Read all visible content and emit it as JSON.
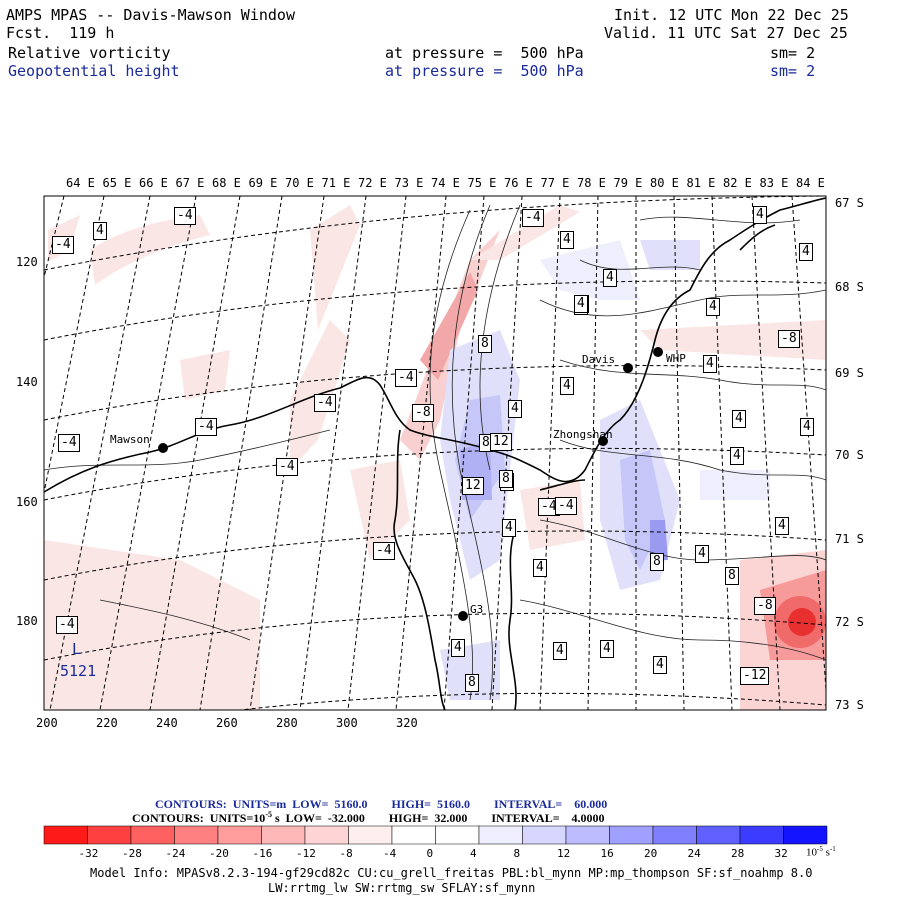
{
  "header": {
    "title": "AMPS MPAS -- Davis-Mawson Window",
    "fcst": "Fcst.  119 h",
    "init": "Init. 12 UTC Mon 22 Dec 25",
    "valid": "Valid. 11 UTC Sat 27 Dec 25",
    "field1": "Relative vorticity",
    "field2": "Geopotential height",
    "pressure1": "at pressure =  500 hPa",
    "pressure2": "at pressure =  500 hPa",
    "sm1": "sm= 2",
    "sm2": "sm= 2"
  },
  "lon_labels": [
    "64 E",
    "65 E",
    "66 E",
    "67 E",
    "68 E",
    "69 E",
    "70 E",
    "71 E",
    "72 E",
    "73 E",
    "74 E",
    "75 E",
    "76 E",
    "77 E",
    "78 E",
    "79 E",
    "80 E",
    "81 E",
    "82 E",
    "83 E",
    "84 E"
  ],
  "lat_labels": [
    "67 S",
    "68 S",
    "69 S",
    "70 S",
    "71 S",
    "72 S",
    "73 S"
  ],
  "x_ticks": [
    "200",
    "220",
    "240",
    "260",
    "280",
    "300",
    "320"
  ],
  "y_ticks": [
    "120",
    "140",
    "160",
    "180"
  ],
  "stations": [
    {
      "name": "Mawson"
    },
    {
      "name": "Davis"
    },
    {
      "name": "WHP"
    },
    {
      "name": "Zhongshan"
    },
    {
      "name": "G3"
    }
  ],
  "contour_labels": [
    "-4",
    "4",
    "-4",
    "-4",
    "4",
    "4",
    "4",
    "4",
    "8",
    "4",
    "-8",
    "8",
    "4",
    "-4",
    "4",
    "-8",
    "8",
    "4",
    "-4",
    "-4",
    "4",
    "4",
    "8",
    "4",
    "-4",
    "12",
    "4",
    "-4",
    "12",
    "8",
    "-4",
    "4",
    "4",
    "4",
    "8",
    "4",
    "-4",
    "8",
    "-4",
    "4",
    "4",
    "8",
    "-8",
    "4",
    "4",
    "-12",
    "-4",
    "8",
    "4"
  ],
  "low_marker": {
    "letter": "L",
    "value": "5121"
  },
  "contour_info": {
    "line1_label": "CONTOURS:  UNITS=m  LOW=  5160.0        HIGH=  5160.0        INTERVAL=    60.000",
    "line2_label": "CONTOURS:  UNITS=10",
    "line2_rest": " s  LOW=  -32.000        HIGH=  32.000        INTERVAL=    4.0000",
    "exp1": "-5",
    "exp2": "-1"
  },
  "colorbar": {
    "colors": [
      "#ff1a1a",
      "#ff4040",
      "#ff6060",
      "#ff8080",
      "#ff9c9c",
      "#ffb8b8",
      "#ffd4d4",
      "#ffeeee",
      "#ffffff",
      "#ffffff",
      "#eeeeff",
      "#d6d6ff",
      "#bcbcff",
      "#a0a0ff",
      "#8080ff",
      "#6060ff",
      "#3c3cff",
      "#1414ff"
    ],
    "labels": [
      "-32",
      "-28",
      "-24",
      "-20",
      "-16",
      "-12",
      "-8",
      "-4",
      "0",
      "4",
      "8",
      "12",
      "16",
      "20",
      "24",
      "28",
      "32"
    ],
    "units": "10",
    "units_exp1": "-5",
    "units_s": "s",
    "units_exp2": "-1"
  },
  "model_info": {
    "line1": "Model Info: MPASv8.2.3-194-gf29cd82c CU:cu_grell_freitas PBL:bl_mynn MP:mp_thompson SF:sf_noahmp 8.0",
    "line2": "LW:rrtmg_lw SW:rrtmg_sw SFLAY:sf_mynn"
  }
}
